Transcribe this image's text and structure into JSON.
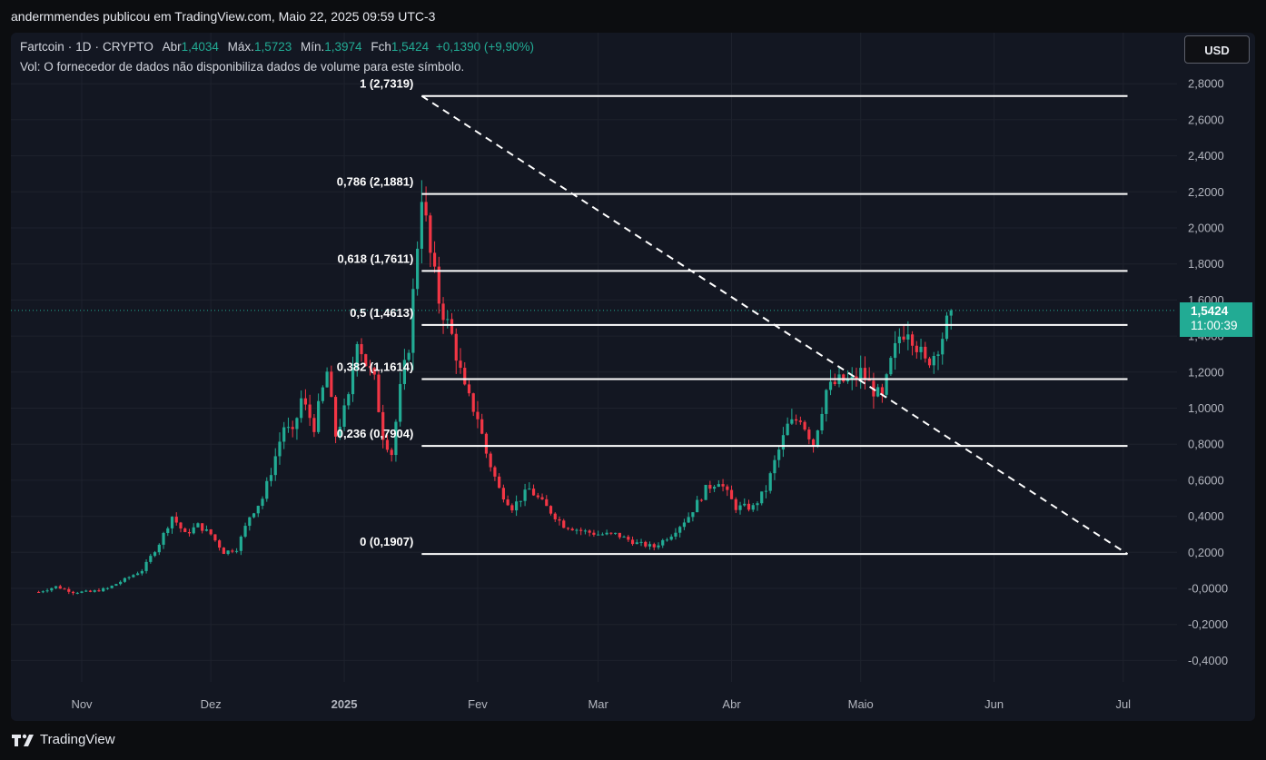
{
  "publisher_line": "andermmendes publicou em TradingView.com, Maio 22, 2025 09:59 UTC-3",
  "legend": {
    "symbol": "Fartcoin",
    "interval": "1D",
    "exchange": "CRYPTO",
    "open_label": "Abr",
    "open_value": "1,4034",
    "high_label": "Máx.",
    "high_value": "1,5723",
    "low_label": "Mín.",
    "low_value": "1,3974",
    "close_label": "Fch",
    "close_value": "1,5424",
    "change_value": "+0,1390 (+9,90%)",
    "volume_note": "Vol: O fornecedor de dados não disponibiliza dados de volume para este símbolo."
  },
  "currency_button": "USD",
  "last_price": {
    "price": "1,5424",
    "countdown": "11:00:39"
  },
  "footer_brand": "TradingView",
  "colors": {
    "up": "#22ab94",
    "down": "#f23645",
    "background": "#131722",
    "grid": "#1e222d",
    "fib_line": "#ffffff"
  },
  "chart_data": {
    "type": "candlestick",
    "y_axis": {
      "ticks": [
        "2,8000",
        "2,6000",
        "2,4000",
        "2,2000",
        "2,0000",
        "1,8000",
        "1,6000",
        "1,4000",
        "1,2000",
        "1,0000",
        "0,8000",
        "0,6000",
        "0,4000",
        "0,2000",
        "-0,0000",
        "-0,2000",
        "-0,4000"
      ],
      "range": [
        -0.5,
        2.85
      ]
    },
    "x_axis": {
      "ticks": [
        {
          "label": "Nov",
          "date": "2024-11-01"
        },
        {
          "label": "Dez",
          "date": "2024-12-01"
        },
        {
          "label": "2025",
          "date": "2025-01-01"
        },
        {
          "label": "Fev",
          "date": "2025-02-01"
        },
        {
          "label": "Mar",
          "date": "2025-03-01"
        },
        {
          "label": "Abr",
          "date": "2025-04-01"
        },
        {
          "label": "Maio",
          "date": "2025-05-01"
        },
        {
          "label": "Jun",
          "date": "2025-06-01"
        },
        {
          "label": "Jul",
          "date": "2025-07-01"
        }
      ],
      "range": [
        "2024-10-20",
        "2025-07-04"
      ]
    },
    "fibonacci": {
      "start_date": "2025-01-19",
      "end_date": "2025-07-02",
      "levels": [
        {
          "label": "1 (2,7319)",
          "value": 2.7319
        },
        {
          "label": "0,786 (2,1881)",
          "value": 2.1881
        },
        {
          "label": "0,618 (1,7611)",
          "value": 1.7611
        },
        {
          "label": "0,5 (1,4613)",
          "value": 1.4613
        },
        {
          "label": "0,382 (1,1614)",
          "value": 1.1614
        },
        {
          "label": "0,236 (0,7904)",
          "value": 0.7904
        },
        {
          "label": "0 (0,1907)",
          "value": 0.1907
        }
      ],
      "trend_line": {
        "from": {
          "date": "2025-01-19",
          "value": 2.7319
        },
        "to": {
          "date": "2025-07-02",
          "value": 0.1907
        }
      }
    },
    "price_path": [
      [
        "2024-10-22",
        -0.02
      ],
      [
        "2024-10-26",
        0.01
      ],
      [
        "2024-10-30",
        -0.02
      ],
      [
        "2024-11-03",
        -0.02
      ],
      [
        "2024-11-07",
        0.0
      ],
      [
        "2024-11-11",
        0.05
      ],
      [
        "2024-11-15",
        0.1
      ],
      [
        "2024-11-19",
        0.25
      ],
      [
        "2024-11-22",
        0.4
      ],
      [
        "2024-11-25",
        0.3
      ],
      [
        "2024-11-28",
        0.35
      ],
      [
        "2024-12-01",
        0.3
      ],
      [
        "2024-12-04",
        0.2
      ],
      [
        "2024-12-07",
        0.22
      ],
      [
        "2024-12-10",
        0.4
      ],
      [
        "2024-12-13",
        0.5
      ],
      [
        "2024-12-15",
        0.65
      ],
      [
        "2024-12-18",
        0.9
      ],
      [
        "2024-12-20",
        0.85
      ],
      [
        "2024-12-22",
        1.05
      ],
      [
        "2024-12-25",
        0.9
      ],
      [
        "2024-12-28",
        1.2
      ],
      [
        "2024-12-30",
        0.85
      ],
      [
        "2025-01-02",
        1.05
      ],
      [
        "2025-01-04",
        1.4
      ],
      [
        "2025-01-06",
        1.25
      ],
      [
        "2025-01-08",
        1.15
      ],
      [
        "2025-01-10",
        0.85
      ],
      [
        "2025-01-12",
        0.75
      ],
      [
        "2025-01-14",
        1.1
      ],
      [
        "2025-01-16",
        1.35
      ],
      [
        "2025-01-19",
        2.2
      ],
      [
        "2025-01-21",
        1.85
      ],
      [
        "2025-01-23",
        1.6
      ],
      [
        "2025-01-26",
        1.4
      ],
      [
        "2025-01-29",
        1.1
      ],
      [
        "2025-02-01",
        0.95
      ],
      [
        "2025-02-03",
        0.75
      ],
      [
        "2025-02-06",
        0.55
      ],
      [
        "2025-02-09",
        0.45
      ],
      [
        "2025-02-13",
        0.55
      ],
      [
        "2025-02-17",
        0.45
      ],
      [
        "2025-02-21",
        0.35
      ],
      [
        "2025-02-25",
        0.32
      ],
      [
        "2025-03-01",
        0.3
      ],
      [
        "2025-03-05",
        0.3
      ],
      [
        "2025-03-10",
        0.25
      ],
      [
        "2025-03-14",
        0.23
      ],
      [
        "2025-03-18",
        0.3
      ],
      [
        "2025-03-22",
        0.4
      ],
      [
        "2025-03-26",
        0.55
      ],
      [
        "2025-03-29",
        0.6
      ],
      [
        "2025-04-02",
        0.45
      ],
      [
        "2025-04-06",
        0.45
      ],
      [
        "2025-04-09",
        0.55
      ],
      [
        "2025-04-11",
        0.7
      ],
      [
        "2025-04-14",
        0.9
      ],
      [
        "2025-04-17",
        0.95
      ],
      [
        "2025-04-20",
        0.8
      ],
      [
        "2025-04-23",
        1.1
      ],
      [
        "2025-04-26",
        1.15
      ],
      [
        "2025-04-29",
        1.15
      ],
      [
        "2025-05-01",
        1.2
      ],
      [
        "2025-05-04",
        1.1
      ],
      [
        "2025-05-06",
        1.05
      ],
      [
        "2025-05-08",
        1.25
      ],
      [
        "2025-05-10",
        1.4
      ],
      [
        "2025-05-12",
        1.45
      ],
      [
        "2025-05-14",
        1.35
      ],
      [
        "2025-05-16",
        1.25
      ],
      [
        "2025-05-18",
        1.3
      ],
      [
        "2025-05-20",
        1.4
      ],
      [
        "2025-05-22",
        1.5424
      ]
    ],
    "last_price": 1.5424
  }
}
